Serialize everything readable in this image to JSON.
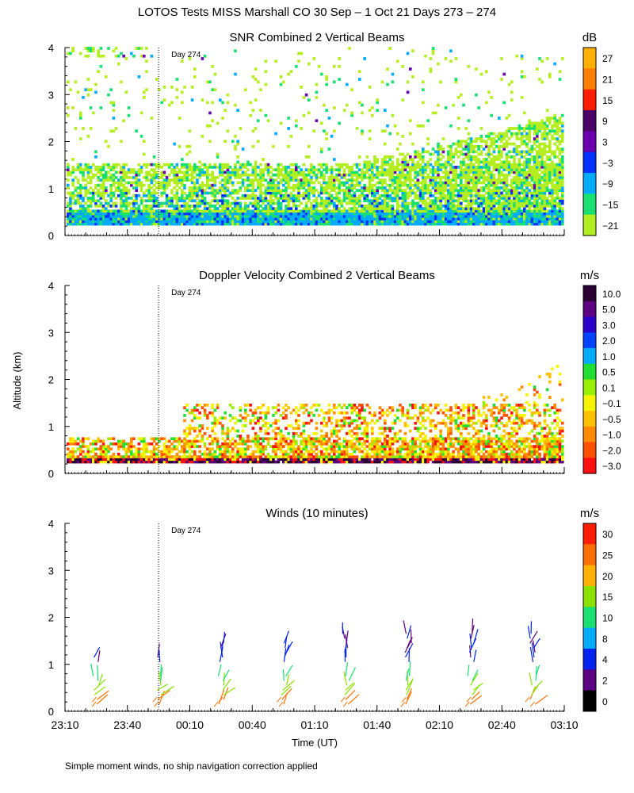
{
  "title": "LOTOS Tests MISS Marshall CO  30 Sep –  1 Oct 21 Days 273 – 274",
  "footnote": "Simple moment winds, no ship navigation correction applied",
  "chart_data": [
    {
      "id": "snr",
      "type": "heatmap",
      "title": "SNR Combined 2 Vertical Beams",
      "ylabel": "",
      "xlabel": "",
      "ylim": [
        0,
        4
      ],
      "yticks": [
        "0",
        "1",
        "2",
        "3",
        "4"
      ],
      "day_marker": {
        "label": "Day 274",
        "time_min": 45
      },
      "colorbar": {
        "unit": "dB",
        "labels": [
          "27",
          "21",
          "15",
          "9",
          "3",
          "−3",
          "−9",
          "−15",
          "−21"
        ],
        "colors": [
          "#FFB000",
          "#FF8000",
          "#FF1E00",
          "#4B0066",
          "#6A00B0",
          "#0033FF",
          "#00AAFF",
          "#18E070",
          "#B4EE20"
        ]
      }
    },
    {
      "id": "doppler",
      "type": "heatmap",
      "title": "Doppler Velocity Combined 2 Vertical Beams",
      "ylabel": "Altitude (km)",
      "xlabel": "",
      "ylim": [
        0,
        4
      ],
      "yticks": [
        "0",
        "1",
        "2",
        "3",
        "4"
      ],
      "day_marker": {
        "label": "Day 274",
        "time_min": 45
      },
      "colorbar": {
        "unit": "m/s",
        "labels": [
          "10.0",
          "5.0",
          "3.0",
          "2.0",
          "1.0",
          "0.5",
          "0.1",
          "−0.1",
          "−0.5",
          "−1.0",
          "−2.0",
          "−3.0"
        ],
        "colors": [
          "#2A0033",
          "#5A0080",
          "#2A00CC",
          "#0044FF",
          "#00AAFF",
          "#22DD33",
          "#99EE00",
          "#F5F500",
          "#FFC000",
          "#FF8A00",
          "#FF5000",
          "#FF1010"
        ]
      }
    },
    {
      "id": "winds",
      "type": "scatter",
      "title": "Winds (10 minutes)",
      "ylabel": "",
      "xlabel": "Time (UT)",
      "ylim": [
        0,
        4
      ],
      "yticks": [
        "0",
        "1",
        "2",
        "3",
        "4"
      ],
      "xlim_min": [
        0,
        240
      ],
      "xticks": [
        "23:10",
        "23:40",
        "00:10",
        "00:40",
        "01:10",
        "01:40",
        "02:10",
        "02:40",
        "03:10"
      ],
      "day_marker": {
        "label": "Day 274",
        "time_min": 45
      },
      "profile_times_min": [
        15,
        45,
        75,
        105,
        135,
        165,
        195,
        225
      ],
      "colorbar": {
        "unit": "m/s",
        "labels": [
          "30",
          "25",
          "20",
          "15",
          "10",
          "8",
          "4",
          "2",
          "0"
        ],
        "colors": [
          "#FF1E00",
          "#FF7000",
          "#FFB000",
          "#8BE000",
          "#18E070",
          "#00AAFF",
          "#0022EE",
          "#5A0080",
          "#000000"
        ]
      }
    }
  ]
}
